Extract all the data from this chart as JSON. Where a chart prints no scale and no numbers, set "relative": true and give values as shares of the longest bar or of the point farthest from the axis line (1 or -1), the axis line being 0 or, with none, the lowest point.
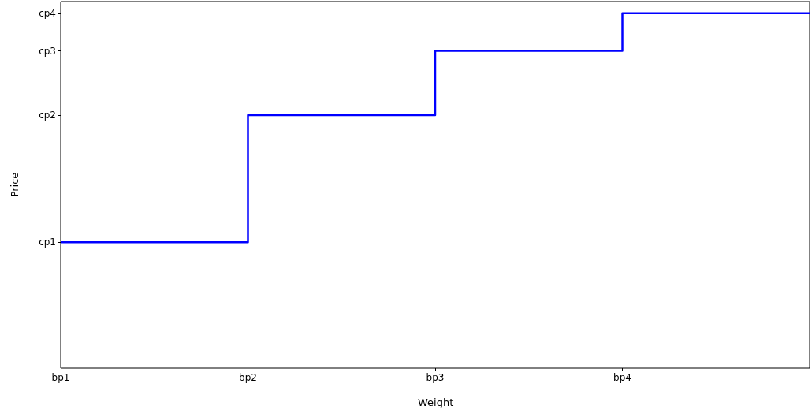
{
  "chart_data": {
    "type": "step",
    "xlabel": "Weight",
    "ylabel": "Price",
    "relative": true,
    "categories": [
      "bp1",
      "bp2",
      "bp3",
      "bp4",
      null
    ],
    "series": [
      {
        "color": "#0000ff",
        "values": [
          0.355,
          0.713,
          0.894,
          1,
          1
        ]
      }
    ],
    "annotations": [
      "cp1",
      "cp2",
      "cp3",
      "cp4"
    ]
  }
}
